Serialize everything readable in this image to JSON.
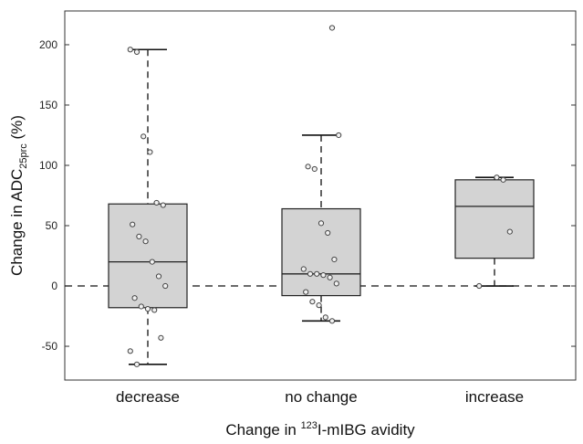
{
  "chart_data": {
    "type": "box",
    "xlabel_parts": [
      "Change in ",
      "123",
      "I-mIBG avidity"
    ],
    "ylabel_parts": [
      "Change in ADC",
      "25prc",
      " (%)"
    ],
    "ylim": [
      -78,
      228
    ],
    "yticks": [
      -50,
      0,
      50,
      100,
      150,
      200
    ],
    "categories": [
      "decrease",
      "no change",
      "increase"
    ],
    "reference_line": 0,
    "box_fill": "#d3d3d3",
    "boxes": [
      {
        "category": "decrease",
        "q1": -18,
        "median": 20,
        "q3": 68,
        "whisker_low": -65,
        "whisker_high": 196,
        "points": [
          196,
          194,
          124,
          111,
          69,
          67,
          51,
          41,
          37,
          20,
          8,
          0,
          -10,
          -17,
          -19,
          -20,
          -43,
          -54,
          -65
        ]
      },
      {
        "category": "no change",
        "q1": -8,
        "median": 10,
        "q3": 64,
        "whisker_low": -29,
        "whisker_high": 125,
        "points": [
          214,
          125,
          99,
          97,
          52,
          44,
          22,
          14,
          10,
          10,
          9,
          7,
          2,
          -5,
          -13,
          -16,
          -26,
          -29
        ]
      },
      {
        "category": "increase",
        "q1": 23,
        "median": 66,
        "q3": 88,
        "whisker_low": 0,
        "whisker_high": 90,
        "points": [
          90,
          88,
          45,
          0
        ]
      }
    ]
  }
}
